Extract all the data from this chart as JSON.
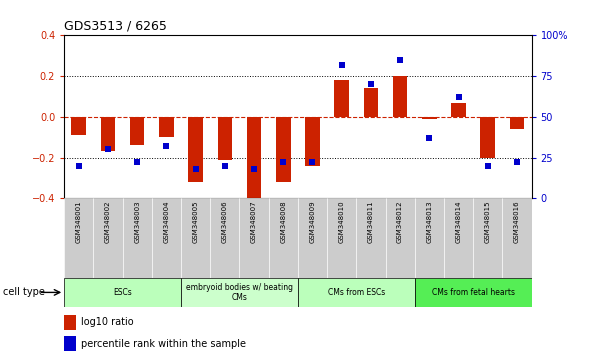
{
  "title": "GDS3513 / 6265",
  "samples": [
    "GSM348001",
    "GSM348002",
    "GSM348003",
    "GSM348004",
    "GSM348005",
    "GSM348006",
    "GSM348007",
    "GSM348008",
    "GSM348009",
    "GSM348010",
    "GSM348011",
    "GSM348012",
    "GSM348013",
    "GSM348014",
    "GSM348015",
    "GSM348016"
  ],
  "log10_ratio": [
    -0.09,
    -0.17,
    -0.14,
    -0.1,
    -0.32,
    -0.21,
    -0.4,
    -0.32,
    -0.24,
    0.18,
    0.14,
    0.2,
    -0.01,
    0.07,
    -0.2,
    -0.06
  ],
  "percentile_rank": [
    20,
    30,
    22,
    32,
    18,
    20,
    18,
    22,
    22,
    82,
    70,
    85,
    37,
    62,
    20,
    22
  ],
  "ylim_left": [
    -0.4,
    0.4
  ],
  "ylim_right": [
    0,
    100
  ],
  "bar_color": "#cc2200",
  "dot_color": "#0000cc",
  "cell_types": [
    {
      "label": "ESCs",
      "start": 0,
      "end": 3,
      "color": "#bbffbb"
    },
    {
      "label": "embryoid bodies w/ beating\nCMs",
      "start": 4,
      "end": 7,
      "color": "#ccffcc"
    },
    {
      "label": "CMs from ESCs",
      "start": 8,
      "end": 11,
      "color": "#bbffbb"
    },
    {
      "label": "CMs from fetal hearts",
      "start": 12,
      "end": 15,
      "color": "#55ee55"
    }
  ],
  "legend_bar_label": "log10 ratio",
  "legend_dot_label": "percentile rank within the sample",
  "bg_color": "#ffffff",
  "tick_label_color_left": "#cc2200",
  "tick_label_color_right": "#0000cc",
  "cell_type_label": "cell type"
}
